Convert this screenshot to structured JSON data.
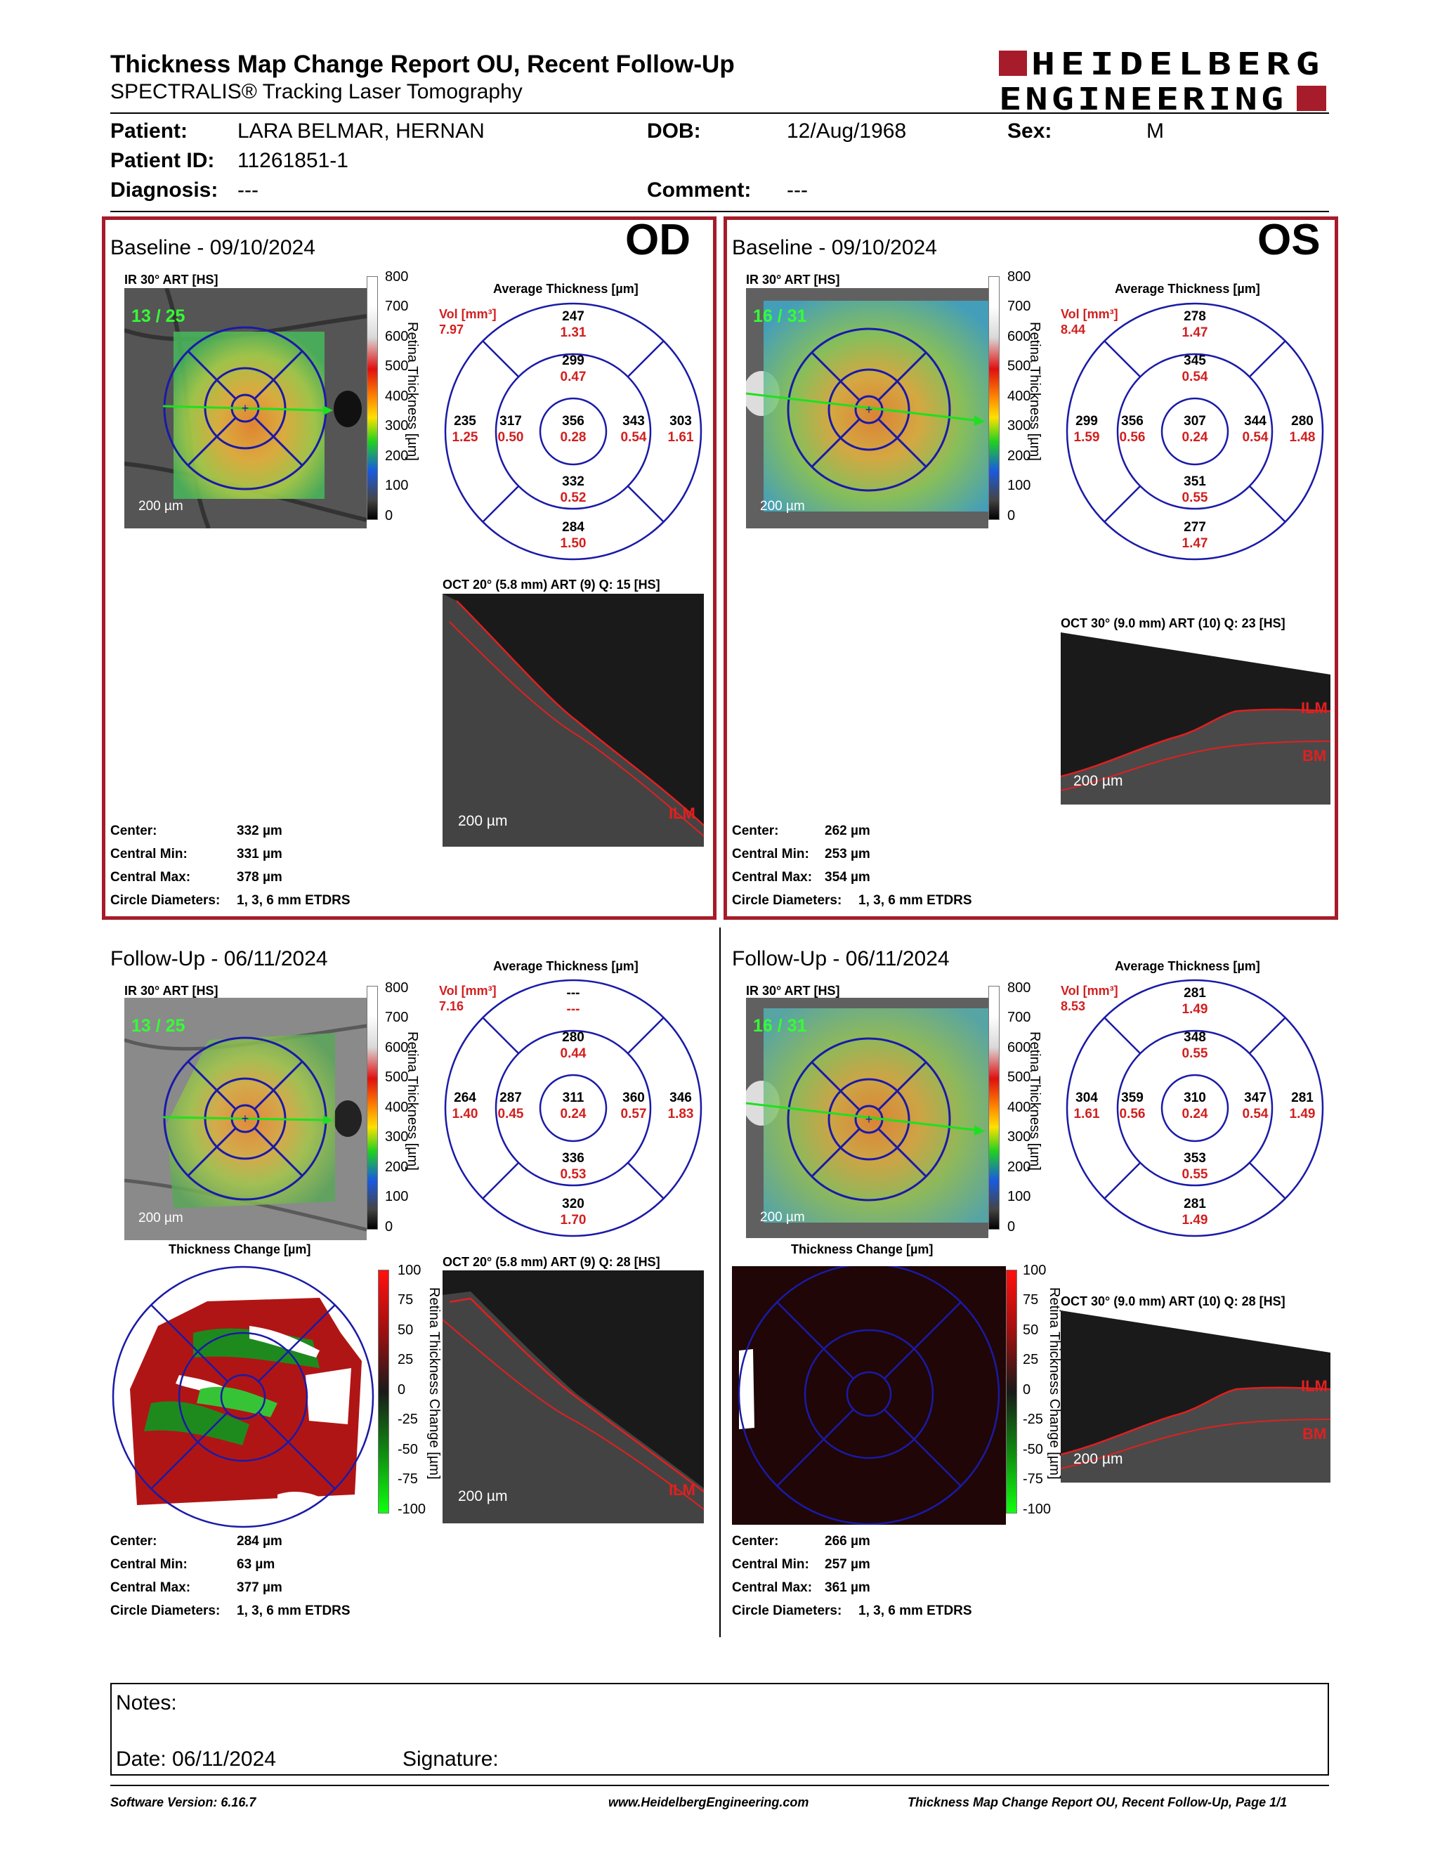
{
  "header": {
    "title": "Thickness Map Change Report OU, Recent Follow-Up",
    "subtitle": "SPECTRALIS® Tracking Laser Tomography",
    "logo": {
      "line1": "HEIDELBERG",
      "line2": "ENGINEERING",
      "color": "#a61c2a"
    }
  },
  "patient": {
    "patient_label": "Patient:",
    "patient_value": "LARA BELMAR, HERNAN",
    "dob_label": "DOB:",
    "dob_value": "12/Aug/1968",
    "sex_label": "Sex:",
    "sex_value": "M",
    "id_label": "Patient ID:",
    "id_value": "11261851-1",
    "diagnosis_label": "Diagnosis:",
    "diagnosis_value": "---",
    "comment_label": "Comment:",
    "comment_value": "---"
  },
  "colors": {
    "accent_red": "#a61c2a",
    "grid_blue": "#1a1aa8",
    "value_red": "#d21f1f",
    "ir_count_green": "#35ff35"
  },
  "scale_labels": {
    "thickness_ticks": [
      "800",
      "700",
      "600",
      "500",
      "400",
      "300",
      "200",
      "100",
      "0"
    ],
    "thickness_title": "Retina Thickness [µm]",
    "change_ticks": [
      "100",
      "75",
      "50",
      "25",
      "0",
      "-25",
      "-50",
      "-75",
      "-100"
    ],
    "change_title": "Retina Thickness Change [µm]",
    "scalebar": "200 µm",
    "avg_title": "Average Thickness [µm]",
    "vol_label": "Vol [mm³]",
    "change_map_title": "Thickness Change [µm]",
    "ilm": "ILM",
    "bm": "BM"
  },
  "stat_labels": {
    "center": "Center:",
    "cmin": "Central Min:",
    "cmax": "Central Max:",
    "circ": "Circle Diameters:"
  },
  "panels": {
    "od_base": {
      "title": "Baseline - 09/10/2024",
      "eye": "OD",
      "ir_label": "IR 30° ART [HS]",
      "count": "13 / 25",
      "vol": "7.97",
      "etdrs": {
        "outer_sup": [
          "247",
          "1.31"
        ],
        "inner_sup": [
          "299",
          "0.47"
        ],
        "outer_temp": [
          "235",
          "1.25"
        ],
        "inner_temp": [
          "317",
          "0.50"
        ],
        "center": [
          "356",
          "0.28"
        ],
        "inner_nas": [
          "343",
          "0.54"
        ],
        "outer_nas": [
          "303",
          "1.61"
        ],
        "inner_inf": [
          "332",
          "0.52"
        ],
        "outer_inf": [
          "284",
          "1.50"
        ]
      },
      "oct_label": "OCT 20° (5.8 mm) ART (9) Q: 15 [HS]",
      "stats": {
        "center": "332 µm",
        "cmin": "331 µm",
        "cmax": "378 µm",
        "circ": "1, 3, 6 mm ETDRS"
      }
    },
    "os_base": {
      "title": "Baseline - 09/10/2024",
      "eye": "OS",
      "ir_label": "IR 30° ART [HS]",
      "count": "16 / 31",
      "vol": "8.44",
      "etdrs": {
        "outer_sup": [
          "278",
          "1.47"
        ],
        "inner_sup": [
          "345",
          "0.54"
        ],
        "outer_temp": [
          "299",
          "1.59"
        ],
        "inner_temp": [
          "356",
          "0.56"
        ],
        "center": [
          "307",
          "0.24"
        ],
        "inner_nas": [
          "344",
          "0.54"
        ],
        "outer_nas": [
          "280",
          "1.48"
        ],
        "inner_inf": [
          "351",
          "0.55"
        ],
        "outer_inf": [
          "277",
          "1.47"
        ]
      },
      "oct_label": "OCT 30° (9.0 mm) ART (10) Q: 23 [HS]",
      "stats": {
        "center": "262 µm",
        "cmin": "253 µm",
        "cmax": "354 µm",
        "circ": "1, 3, 6 mm ETDRS"
      }
    },
    "od_fu": {
      "title": "Follow-Up - 06/11/2024",
      "ir_label": "IR 30° ART [HS]",
      "count": "13 / 25",
      "vol": "7.16",
      "etdrs": {
        "outer_sup": [
          "---",
          "---"
        ],
        "inner_sup": [
          "280",
          "0.44"
        ],
        "outer_temp": [
          "264",
          "1.40"
        ],
        "inner_temp": [
          "287",
          "0.45"
        ],
        "center": [
          "311",
          "0.24"
        ],
        "inner_nas": [
          "360",
          "0.57"
        ],
        "outer_nas": [
          "346",
          "1.83"
        ],
        "inner_inf": [
          "336",
          "0.53"
        ],
        "outer_inf": [
          "320",
          "1.70"
        ]
      },
      "oct_label": "OCT 20° (5.8 mm) ART (9) Q: 28 [HS]",
      "stats": {
        "center": "284 µm",
        "cmin": "63 µm",
        "cmax": "377 µm",
        "circ": "1, 3, 6 mm ETDRS"
      }
    },
    "os_fu": {
      "title": "Follow-Up - 06/11/2024",
      "ir_label": "IR 30° ART [HS]",
      "count": "16 / 31",
      "vol": "8.53",
      "etdrs": {
        "outer_sup": [
          "281",
          "1.49"
        ],
        "inner_sup": [
          "348",
          "0.55"
        ],
        "outer_temp": [
          "304",
          "1.61"
        ],
        "inner_temp": [
          "359",
          "0.56"
        ],
        "center": [
          "310",
          "0.24"
        ],
        "inner_nas": [
          "347",
          "0.54"
        ],
        "outer_nas": [
          "281",
          "1.49"
        ],
        "inner_inf": [
          "353",
          "0.55"
        ],
        "outer_inf": [
          "281",
          "1.49"
        ]
      },
      "oct_label": "OCT 30° (9.0 mm) ART (10) Q: 28 [HS]",
      "stats": {
        "center": "266 µm",
        "cmin": "257 µm",
        "cmax": "361 µm",
        "circ": "1, 3, 6 mm ETDRS"
      }
    }
  },
  "notes": {
    "notes_label": "Notes:",
    "date_label": "Date: 06/11/2024",
    "signature_label": "Signature:"
  },
  "footer": {
    "left": "Software Version: 6.16.7",
    "center": "www.HeidelbergEngineering.com",
    "right": "Thickness Map Change Report OU, Recent Follow-Up, Page 1/1"
  }
}
